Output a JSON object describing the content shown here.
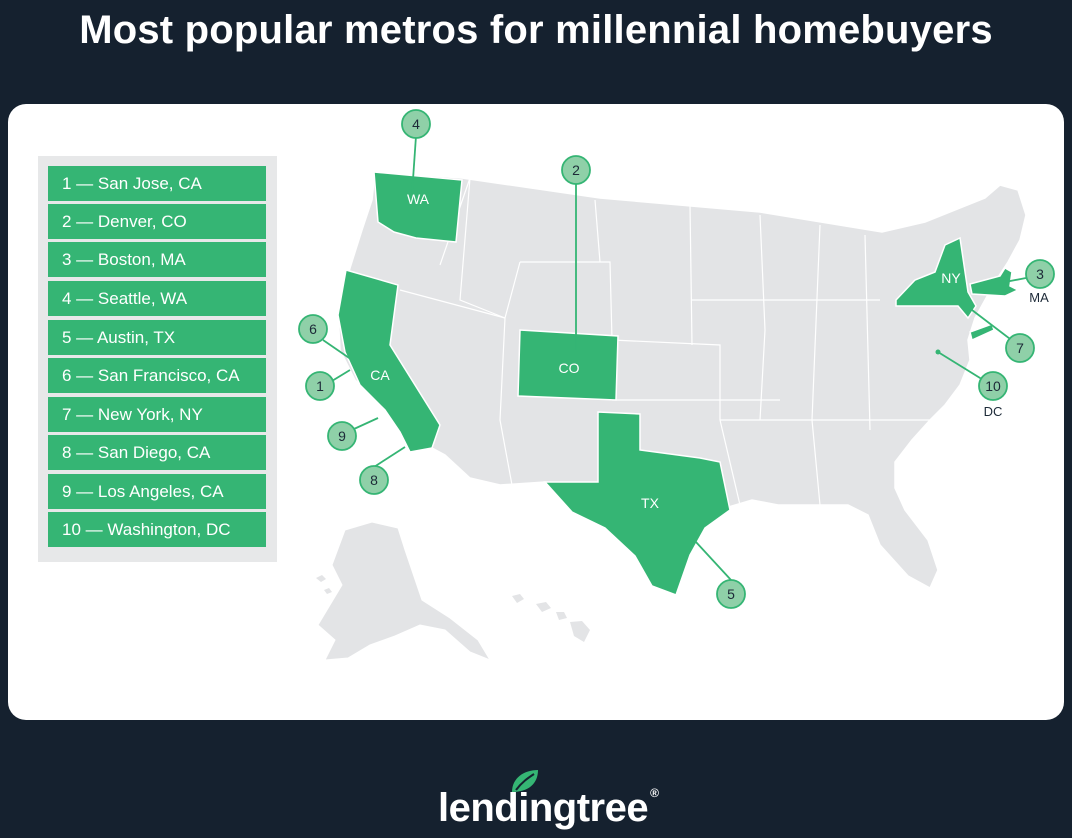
{
  "title": "Most popular metros for millennial homebuyers",
  "legend": [
    {
      "rank": 1,
      "label": "1 — San Jose, CA"
    },
    {
      "rank": 2,
      "label": "2 — Denver, CO"
    },
    {
      "rank": 3,
      "label": "3 — Boston, MA"
    },
    {
      "rank": 4,
      "label": "4 — Seattle, WA"
    },
    {
      "rank": 5,
      "label": "5 — Austin, TX"
    },
    {
      "rank": 6,
      "label": "6 — San Francisco, CA"
    },
    {
      "rank": 7,
      "label": "7 — New York, NY"
    },
    {
      "rank": 8,
      "label": "8 — San Diego, CA"
    },
    {
      "rank": 9,
      "label": "9 — Los Angeles, CA"
    },
    {
      "rank": 10,
      "label": "10 — Washington, DC"
    }
  ],
  "states": {
    "wa": "WA",
    "ca": "CA",
    "co": "CO",
    "tx": "TX",
    "ny": "NY",
    "ma": "MA",
    "dc": "DC"
  },
  "markers": {
    "m1": "1",
    "m2": "2",
    "m3": "3",
    "m4": "4",
    "m5": "5",
    "m6": "6",
    "m7": "7",
    "m8": "8",
    "m9": "9",
    "m10": "10"
  },
  "logo": {
    "text": "lendingtree",
    "registered": "®",
    "icon": "leaf-icon"
  },
  "colors": {
    "background": "#15212f",
    "highlight_state": "#35b574",
    "marker_fill": "#8fd0a8",
    "base_state": "#e3e4e6",
    "legend_bg": "#e7e8e9"
  }
}
